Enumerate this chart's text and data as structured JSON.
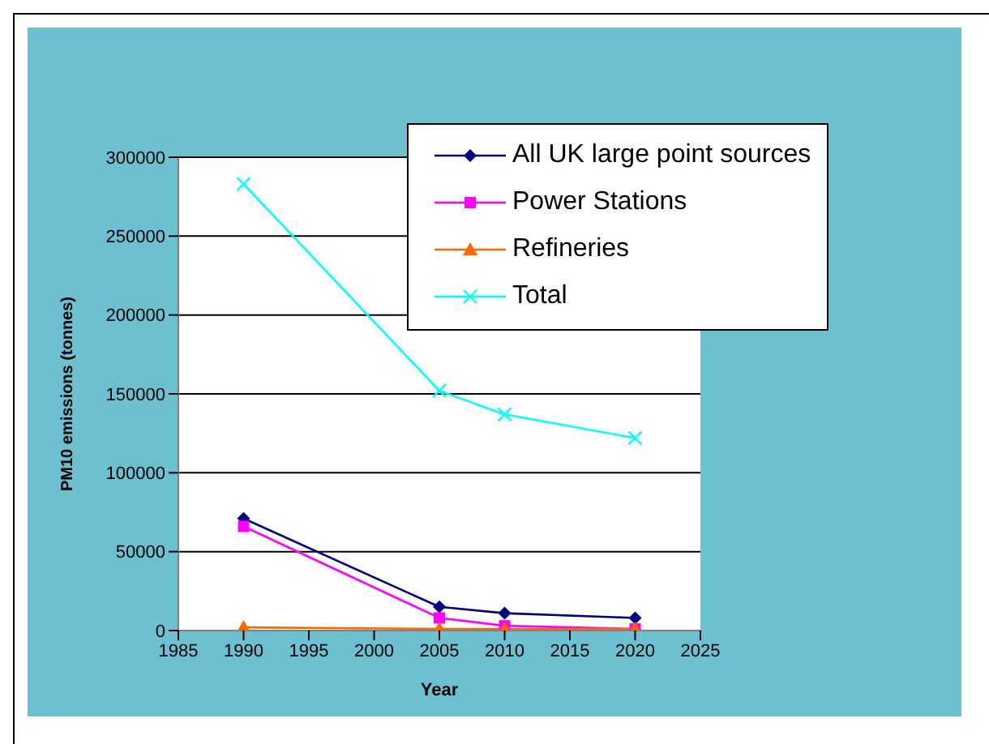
{
  "chart_data": {
    "type": "line",
    "xlabel": "Year",
    "ylabel": "PM10 emissions (tonnes)",
    "x": [
      1990,
      2005,
      2010,
      2020
    ],
    "xlim": [
      1985,
      2025
    ],
    "xticks": [
      1985,
      1990,
      1995,
      2000,
      2005,
      2010,
      2015,
      2020,
      2025
    ],
    "ylim": [
      0,
      300000
    ],
    "yticks": [
      0,
      50000,
      100000,
      150000,
      200000,
      250000,
      300000
    ],
    "grid": "y",
    "legend": "top right",
    "series": [
      {
        "name": "All UK large point sources",
        "color": "#000080",
        "marker": "diamond",
        "values": [
          71000,
          15000,
          11000,
          8000
        ]
      },
      {
        "name": "Power Stations",
        "color": "#ff00ff",
        "marker": "square",
        "values": [
          66000,
          8000,
          3000,
          1000
        ]
      },
      {
        "name": "Refineries",
        "color": "#ff6600",
        "marker": "triangle",
        "values": [
          2000,
          1000,
          1000,
          1000
        ]
      },
      {
        "name": "Total",
        "color": "#00ffff",
        "marker": "cross",
        "values": [
          283000,
          152000,
          137000,
          122000
        ]
      }
    ]
  }
}
